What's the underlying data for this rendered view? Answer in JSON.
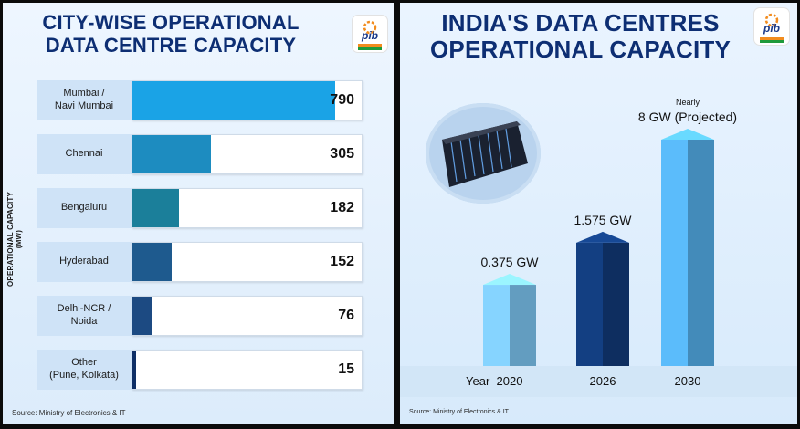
{
  "left": {
    "title_line1": "CITY-WISE OPERATIONAL",
    "title_line2": "DATA CENTRE CAPACITY",
    "source": "Source: Ministry of Electronics & IT",
    "logo_text": "pib"
  },
  "right": {
    "title_line1": "INDIA'S DATA CENTRES",
    "title_line2": "OPERATIONAL CAPACITY",
    "source": "Source: Ministry of Electronics & IT",
    "logo_text": "pib"
  },
  "chart_data": [
    {
      "type": "bar",
      "orientation": "horizontal",
      "title": "CITY-WISE OPERATIONAL DATA CENTRE CAPACITY",
      "ylabel": "OPERATIONAL CAPACITY (MW)",
      "categories": [
        "Mumbai /\nNavi Mumbai",
        "Chennai",
        "Bengaluru",
        "Hyderabad",
        "Delhi-NCR /\nNoida",
        "Other\n(Pune, Kolkata)"
      ],
      "values": [
        790,
        305,
        182,
        152,
        76,
        15
      ],
      "xlim": [
        0,
        900
      ],
      "colors": [
        "#1aa3e6",
        "#1d8cc0",
        "#1b7f9a",
        "#1e5a8e",
        "#1c4a82",
        "#0f2f66"
      ]
    },
    {
      "type": "bar",
      "title": "INDIA'S DATA CENTRES OPERATIONAL CAPACITY",
      "xlabel": "Year",
      "categories": [
        "2020",
        "2026",
        "2030"
      ],
      "values": [
        0.375,
        1.575,
        8
      ],
      "value_labels": [
        "0.375 GW",
        "1.575 GW",
        "8 GW (Projected)"
      ],
      "label_prefixes": [
        "",
        "",
        "Nearly"
      ],
      "colors": [
        "#7cc4f0",
        "#123a78",
        "#54aee8"
      ]
    }
  ]
}
